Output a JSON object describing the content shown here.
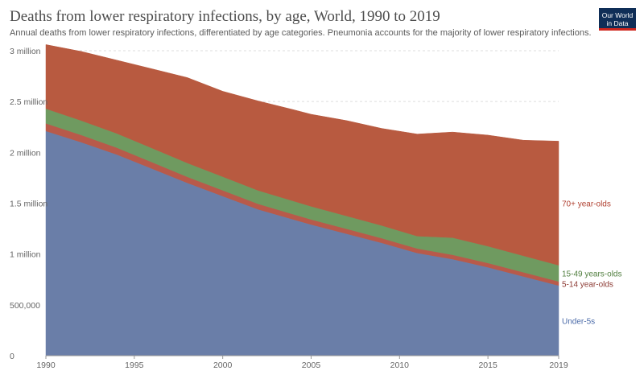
{
  "header": {
    "title": "Deaths from lower respiratory infections, by age, World, 1990 to 2019",
    "subtitle": "Annual deaths from lower respiratory infections, differentiated by age categories. Pneumonia accounts for the majority of lower respiratory infections."
  },
  "logo": {
    "line1": "Our World",
    "line2": "in Data"
  },
  "chart_data": {
    "type": "area",
    "stacked": true,
    "x": [
      1990,
      1992,
      1994,
      1996,
      1998,
      2000,
      2002,
      2004,
      2005,
      2007,
      2009,
      2011,
      2013,
      2015,
      2017,
      2019
    ],
    "series": [
      {
        "name": "Under-5s",
        "color": "#6a7ea8",
        "values": [
          2210000,
          2100000,
          1980000,
          1840000,
          1700000,
          1570000,
          1440000,
          1340000,
          1290000,
          1200000,
          1110000,
          1010000,
          950000,
          870000,
          780000,
          690000
        ]
      },
      {
        "name": "5-14 year-olds",
        "color": "#b85a4a",
        "values": [
          75000,
          71000,
          67000,
          64000,
          60000,
          57000,
          54000,
          51000,
          50000,
          48000,
          46000,
          44000,
          43000,
          42000,
          41000,
          40000
        ]
      },
      {
        "name": "15-49 years-olds",
        "color": "#6f9a60",
        "values": [
          145000,
          142000,
          140000,
          138000,
          136000,
          134000,
          132000,
          130000,
          129000,
          127000,
          125000,
          122000,
          168000,
          165000,
          162000,
          160000
        ]
      },
      {
        "name": "70+ year-olds",
        "color": "#b85a40",
        "values": [
          630000,
          680000,
          720000,
          780000,
          840000,
          840000,
          880000,
          899000,
          906000,
          938000,
          954000,
          1004000,
          1039000,
          1093000,
          1137000,
          1220000
        ]
      }
    ],
    "ylim": [
      0,
      3000000
    ],
    "yticks": [
      0,
      500000,
      1000000,
      1500000,
      2000000,
      2500000,
      3000000
    ],
    "ytick_labels": [
      "0",
      "500,000",
      "1 million",
      "1.5 million",
      "2 million",
      "2.5 million",
      "3 million"
    ],
    "xlim": [
      1990,
      2019
    ],
    "xticks": [
      1990,
      1995,
      2000,
      2005,
      2010,
      2015,
      2019
    ],
    "xtick_labels": [
      "1990",
      "1995",
      "2000",
      "2005",
      "2010",
      "2015",
      "2019"
    ],
    "grid": true
  }
}
